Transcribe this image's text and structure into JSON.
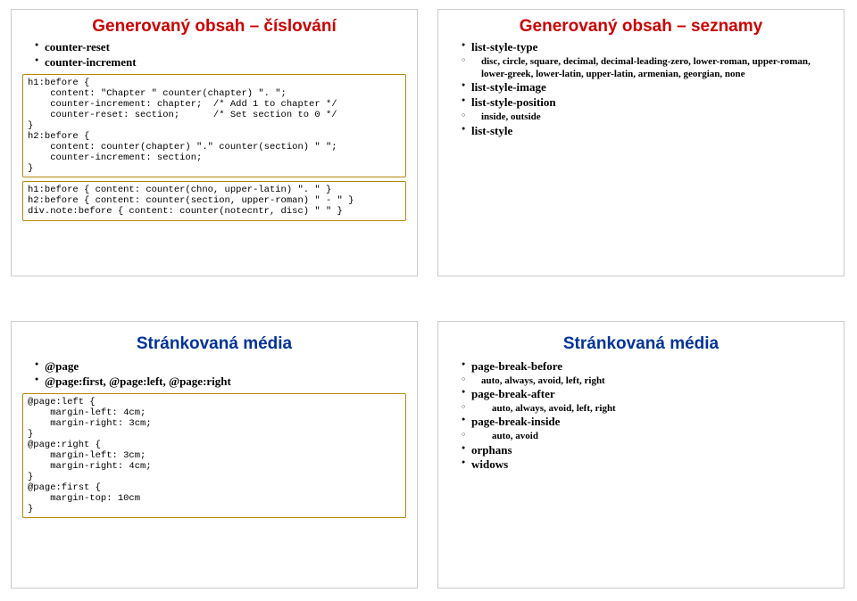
{
  "slide1": {
    "title": "Generovaný obsah – číslování",
    "bullets": {
      "b1": "counter-reset",
      "b2": "counter-increment"
    },
    "code1": "h1:before {\n    content: \"Chapter \" counter(chapter) \". \";\n    counter-increment: chapter;  /* Add 1 to chapter */\n    counter-reset: section;      /* Set section to 0 */\n}\nh2:before {\n    content: counter(chapter) \".\" counter(section) \" \";\n    counter-increment: section;\n}",
    "code2": "h1:before { content: counter(chno, upper-latin) \". \" }\nh2:before { content: counter(section, upper-roman) \" - \" }\ndiv.note:before { content: counter(notecntr, disc) \" \" }"
  },
  "slide2": {
    "title": "Generovaný obsah – seznamy",
    "items": {
      "i1": "list-style-type",
      "i1sub": "disc, circle, square, decimal, decimal-leading-zero, lower-roman, upper-roman, lower-greek, lower-latin, upper-latin, armenian, georgian, none",
      "i2": "list-style-image",
      "i3": "list-style-position",
      "i3sub": "inside, outside",
      "i4": "list-style"
    }
  },
  "slide3": {
    "title": "Stránkovaná média",
    "bullets": {
      "b1": "@page",
      "b2": "@page:first, @page:left, @page:right"
    },
    "code": "@page:left {\n    margin-left: 4cm;\n    margin-right: 3cm;\n}\n@page:right {\n    margin-left: 3cm;\n    margin-right: 4cm;\n}\n@page:first {\n    margin-top: 10cm\n}"
  },
  "slide4": {
    "title": "Stránkovaná média",
    "items": {
      "i1": "page-break-before",
      "i1sub": "auto, always, avoid, left, right",
      "i2": "page-break-after",
      "i2sub": "auto, always, avoid, left, right",
      "i3": "page-break-inside",
      "i3sub": "auto, avoid",
      "i4": "orphans",
      "i5": "widows"
    }
  }
}
